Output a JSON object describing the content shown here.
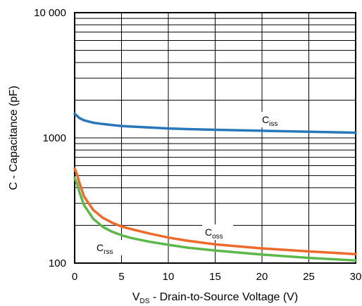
{
  "chart_data": {
    "type": "line",
    "x_scale": "linear",
    "y_scale": "log",
    "xlim": [
      0,
      30
    ],
    "ylim": [
      100,
      10000
    ],
    "grid": true,
    "x_ticks": [
      "0",
      "5",
      "10",
      "15",
      "20",
      "25",
      "30"
    ],
    "y_ticks": [
      "100",
      "1000",
      "10 000"
    ],
    "xlabel": {
      "pre": "V",
      "sub": "DS",
      "post": " - Drain-to-Source Voltage (V)"
    },
    "ylabel": "C - Capacitance (pF)",
    "x": [
      0,
      0.25,
      0.5,
      1,
      2,
      3,
      4,
      5,
      6,
      8,
      10,
      12,
      15,
      20,
      25,
      30
    ],
    "series": [
      {
        "name": "Ciss",
        "label_main": "C",
        "label_sub": "iss",
        "color": "#2878b9",
        "values": [
          1560,
          1500,
          1440,
          1380,
          1320,
          1290,
          1265,
          1245,
          1232,
          1210,
          1190,
          1175,
          1160,
          1140,
          1120,
          1100
        ]
      },
      {
        "name": "Coss",
        "label_main": "C",
        "label_sub": "oss",
        "color": "#ee6a2b",
        "values": [
          570,
          510,
          440,
          340,
          265,
          230,
          210,
          196,
          187,
          172,
          160,
          151,
          141,
          131,
          124,
          118
        ]
      },
      {
        "name": "Crss",
        "label_main": "C",
        "label_sub": "rss",
        "color": "#5cb84a",
        "values": [
          480,
          430,
          370,
          290,
          225,
          195,
          178,
          167,
          159,
          148,
          140,
          133,
          126,
          117,
          110,
          105
        ]
      }
    ]
  }
}
